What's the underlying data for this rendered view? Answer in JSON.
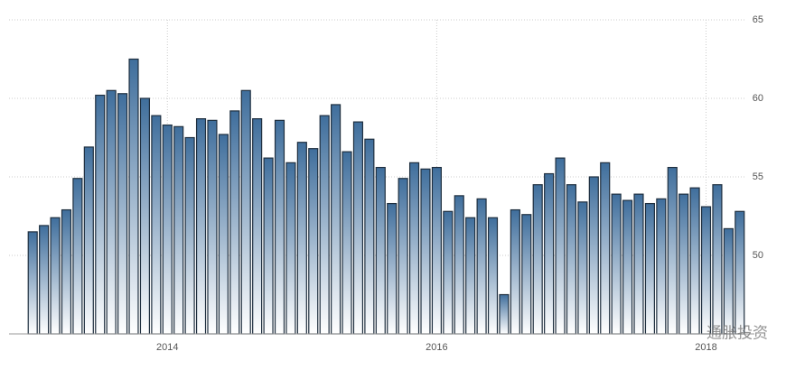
{
  "chart_data": {
    "type": "bar",
    "categories": [
      null,
      null,
      null,
      null,
      null,
      null,
      null,
      null,
      null,
      null,
      null,
      null,
      "2014",
      null,
      null,
      null,
      null,
      null,
      null,
      null,
      null,
      null,
      null,
      null,
      null,
      null,
      null,
      null,
      null,
      null,
      null,
      null,
      null,
      null,
      null,
      null,
      "2016",
      null,
      null,
      null,
      null,
      null,
      null,
      null,
      null,
      null,
      null,
      null,
      null,
      null,
      null,
      null,
      null,
      null,
      null,
      null,
      null,
      null,
      null,
      null,
      "2018",
      null,
      null,
      null
    ],
    "values": [
      51.5,
      51.9,
      52.4,
      52.9,
      54.9,
      56.9,
      60.2,
      60.5,
      60.3,
      62.5,
      60.0,
      58.9,
      58.3,
      58.2,
      57.5,
      58.7,
      58.6,
      57.7,
      59.2,
      60.5,
      58.7,
      56.2,
      58.6,
      55.9,
      57.2,
      56.8,
      58.9,
      59.6,
      56.6,
      58.5,
      57.4,
      55.6,
      53.3,
      54.9,
      55.9,
      55.5,
      55.6,
      52.8,
      53.8,
      52.4,
      53.6,
      52.4,
      47.5,
      52.9,
      52.6,
      54.5,
      55.2,
      56.2,
      54.5,
      53.4,
      55.0,
      55.9,
      53.9,
      53.5,
      53.9,
      53.3,
      53.6,
      55.6,
      53.9,
      54.3,
      53.1,
      54.5,
      51.7,
      52.8
    ],
    "color": "#3f6e9c",
    "ylim": [
      45,
      65
    ],
    "yticks": [
      50,
      55,
      60,
      65
    ],
    "grid": true,
    "watermark": "通胀投资"
  }
}
